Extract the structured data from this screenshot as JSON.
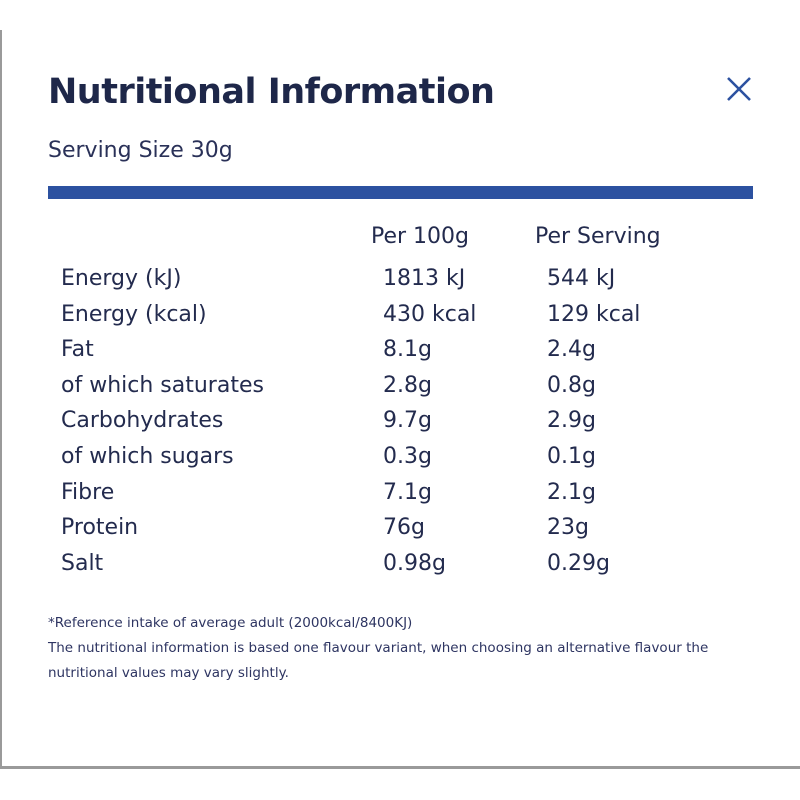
{
  "dialog": {
    "title": "Nutritional Information",
    "serving_size": "Serving Size 30g",
    "close_icon": "close-x-icon",
    "accent_color": "#2c51a0",
    "text_color": "#1e2749"
  },
  "table": {
    "headers": [
      "",
      "Per 100g",
      "Per Serving"
    ],
    "rows": [
      [
        "Energy (kJ)",
        "1813 kJ",
        "544 kJ"
      ],
      [
        "Energy (kcal)",
        "430 kcal",
        "129 kcal"
      ],
      [
        "Fat",
        "8.1g",
        "2.4g"
      ],
      [
        "of which saturates",
        "2.8g",
        "0.8g"
      ],
      [
        "Carbohydrates",
        "9.7g",
        "2.9g"
      ],
      [
        "of which sugars",
        "0.3g",
        "0.1g"
      ],
      [
        "Fibre",
        "7.1g",
        "2.1g"
      ],
      [
        "Protein",
        "76g",
        "23g"
      ],
      [
        "Salt",
        "0.98g",
        "0.29g"
      ]
    ]
  },
  "footnotes": [
    "*Reference intake of average adult (2000kcal/8400KJ)",
    "The nutritional information is based one flavour variant, when choosing an alternative flavour the",
    "nutritional values may vary slightly."
  ]
}
